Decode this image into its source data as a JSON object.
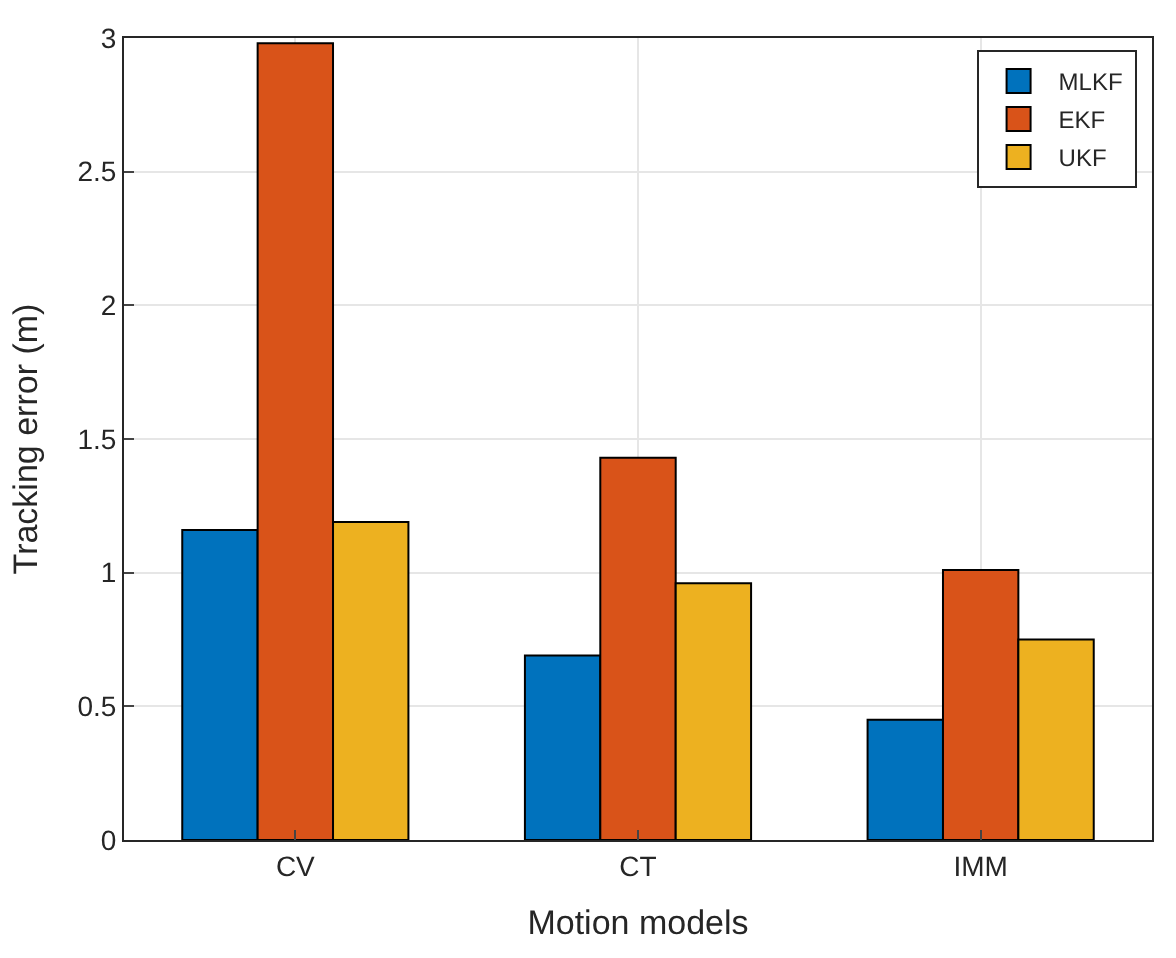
{
  "chart_data": {
    "type": "bar",
    "xlabel": "Motion models",
    "ylabel": "Tracking error (m)",
    "categories": [
      "CV",
      "CT",
      "IMM"
    ],
    "series": [
      {
        "name": "MLKF",
        "color": "#0072bd",
        "values": [
          1.16,
          0.69,
          0.45
        ]
      },
      {
        "name": "EKF",
        "color": "#d95319",
        "values": [
          2.98,
          1.43,
          1.01
        ]
      },
      {
        "name": "UKF",
        "color": "#edb120",
        "values": [
          1.19,
          0.96,
          0.75
        ]
      }
    ],
    "ylim": [
      0,
      3
    ],
    "yticks": [
      0,
      0.5,
      1,
      1.5,
      2,
      2.5,
      3
    ],
    "grid": true,
    "legend": "top right"
  }
}
